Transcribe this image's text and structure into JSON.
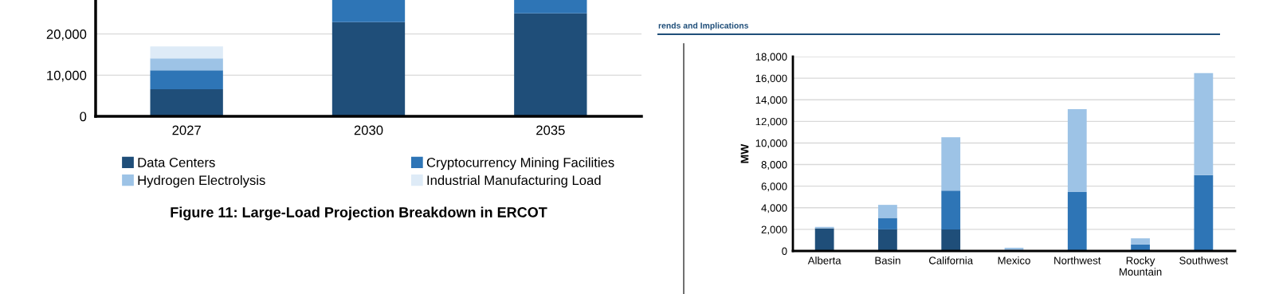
{
  "chart_data": [
    {
      "type": "bar",
      "title": "Figure 11: Large-Load Projection Breakdown in ERCOT",
      "categories": [
        "2027",
        "2030",
        "2035"
      ],
      "stacked": true,
      "series": [
        {
          "name": "Data Centers",
          "color": "#1f4e79",
          "values": [
            6600,
            22900,
            25000
          ]
        },
        {
          "name": "Cryptocurrency Mining Facilities",
          "color": "#2e75b6",
          "values": [
            4600,
            5400,
            3300
          ]
        },
        {
          "name": "Hydrogen Electrolysis",
          "color": "#9dc3e6",
          "values": [
            2900,
            null,
            null
          ]
        },
        {
          "name": "Industrial Manufacturing Load",
          "color": "#deebf7",
          "values": [
            2900,
            null,
            null
          ]
        }
      ],
      "ylim": [
        0,
        28260
      ],
      "yticks": [
        {
          "value": 0,
          "label": "0"
        },
        {
          "value": 10000,
          "label": "10,000"
        },
        {
          "value": 20000,
          "label": "20,000"
        }
      ],
      "grid": "y",
      "legend": "bottom"
    },
    {
      "type": "bar",
      "ylabel": "MW",
      "annotations": [
        "rends and Implications"
      ],
      "categories": [
        "Alberta",
        "Basin",
        "California",
        "Mexico",
        "Northwest",
        "Rocky Mountain",
        "Southwest"
      ],
      "stacked": true,
      "series": [
        {
          "color": "#1f4e79",
          "values": [
            2100,
            2000,
            2000,
            0,
            0,
            0,
            0
          ]
        },
        {
          "color": "#2e75b6",
          "values": [
            0,
            1060,
            3580,
            0,
            5460,
            600,
            7020
          ]
        },
        {
          "color": "#9dc3e6",
          "values": [
            130,
            1210,
            4950,
            300,
            7670,
            570,
            9450
          ]
        }
      ],
      "ylim": [
        0,
        18000
      ],
      "yticks": [
        {
          "value": 0,
          "label": "0"
        },
        {
          "value": 2000,
          "label": "2,000"
        },
        {
          "value": 4000,
          "label": "4,000"
        },
        {
          "value": 6000,
          "label": "6,000"
        },
        {
          "value": 8000,
          "label": "8,000"
        },
        {
          "value": 10000,
          "label": "10,000"
        },
        {
          "value": 12000,
          "label": "12,000"
        },
        {
          "value": 14000,
          "label": "14,000"
        },
        {
          "value": 16000,
          "label": "16,000"
        },
        {
          "value": 18000,
          "label": "18,000"
        }
      ],
      "grid": "y"
    }
  ]
}
